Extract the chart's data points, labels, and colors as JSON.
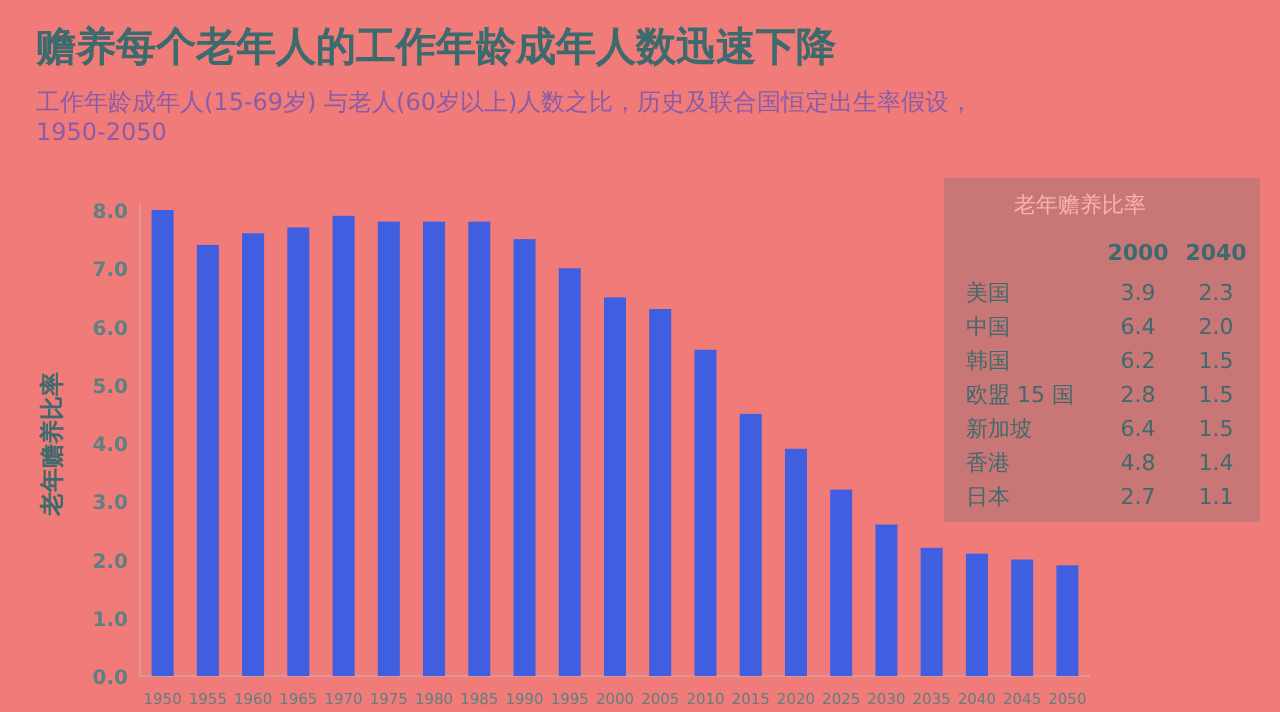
{
  "chart_data": [
    {
      "type": "bar",
      "title": "赡养每个老年人的工作年龄成年人数迅速下降",
      "subtitle": "工作年龄成年人(15-69岁) 与老人(60岁以上)人数之比，历史及联合国恒定出生率假设，1950-2050",
      "ylabel": "老年赡养比率",
      "categories": [
        "1950",
        "1955",
        "1960",
        "1965",
        "1970",
        "1975",
        "1980",
        "1985",
        "1990",
        "1995",
        "2000",
        "2005",
        "2010",
        "2015",
        "2020",
        "2025",
        "2030",
        "2035",
        "2040",
        "2045",
        "2050"
      ],
      "values": [
        8.0,
        7.4,
        7.6,
        7.7,
        7.9,
        7.8,
        7.8,
        7.8,
        7.5,
        7.0,
        6.5,
        6.3,
        5.6,
        4.5,
        3.9,
        3.2,
        2.6,
        2.2,
        2.1,
        2.0,
        1.9
      ],
      "color": "#3f5ee0",
      "ylim": [
        0,
        8.1
      ],
      "yticks": [
        {
          "value": 0,
          "label": "0.0"
        },
        {
          "value": 1,
          "label": "1.0"
        },
        {
          "value": 2,
          "label": "2.0"
        },
        {
          "value": 3,
          "label": "3.0"
        },
        {
          "value": 4,
          "label": "4.0"
        },
        {
          "value": 5,
          "label": "5.0"
        },
        {
          "value": 6,
          "label": "6.0"
        },
        {
          "value": 7,
          "label": "7.0"
        },
        {
          "value": 8,
          "label": "8.0"
        }
      ],
      "grid": false
    },
    {
      "type": "other",
      "title": "老年赡养比率",
      "categories": [
        "美国",
        "中国",
        "韩国",
        "欧盟 15 国",
        "新加坡",
        "香港",
        "日本"
      ],
      "series": [
        {
          "name": "2000",
          "values": [
            3.9,
            6.4,
            6.2,
            2.8,
            6.4,
            4.8,
            2.7
          ]
        },
        {
          "name": "2040",
          "values": [
            2.3,
            2.0,
            1.5,
            1.5,
            1.5,
            1.4,
            1.1
          ],
          "value_labels": [
            "2.3",
            "2.0",
            "1.5",
            "1.5",
            "1.5",
            "1.4",
            "1.1"
          ]
        }
      ],
      "data_labels": true
    }
  ]
}
